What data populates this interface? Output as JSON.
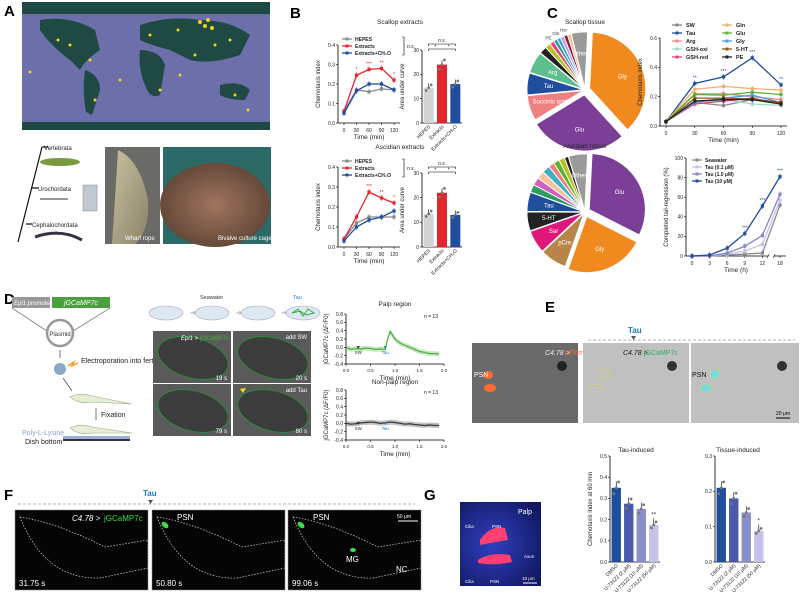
{
  "panels": {
    "A": "A",
    "B": "B",
    "C": "C",
    "D": "D",
    "E": "E",
    "F": "F",
    "G": "G"
  },
  "colors": {
    "red": "#e3262b",
    "blue": "#1f4e9c",
    "grey": "#8a8a8a",
    "green": "#49b03c",
    "orange": "#f08a1e",
    "purple": "#7b3f98"
  },
  "panel_a": {
    "taxa": [
      "Vertebrata",
      "Urochordata",
      "Cephalochordata"
    ],
    "photo_labels": [
      "Wharf rope",
      "Bivalve culture cage"
    ]
  },
  "panel_d": {
    "promoter": "Epi1 promoter",
    "reporter": "jGCaMP7c",
    "plasmid": "Plasmid",
    "electroporation": "Electroporation into fertilized eggs",
    "fixation": "Fixation",
    "coating": "Poly-L-Lysine",
    "dish": "Dish bottom",
    "seawater": "Seawater",
    "tau": "Tau",
    "construct_prefix": "Epi1 >",
    "construct_suffix": "jGCaMP7c",
    "frames": [
      {
        "time": "19 s",
        "note": ""
      },
      {
        "time": "20 s",
        "note": "add SW"
      },
      {
        "time": "79 s",
        "note": ""
      },
      {
        "time": "80 s",
        "note": "add Tau"
      }
    ]
  },
  "panel_e": {
    "tau": "Tau",
    "img1_prefix": "C4.78 >",
    "img1_suffix": "tdTomato",
    "img2_prefix": "C4.78 >",
    "img2_suffix": "jGCaMP7c",
    "psn": "PSN",
    "scale": "20 μm"
  },
  "panel_f": {
    "tau": "Tau",
    "prefix": "C4.78 >",
    "suffix": "jGCaMP7c",
    "scale": "50 μm",
    "frames": [
      {
        "time": "31.75 s",
        "labels": []
      },
      {
        "time": "50.80 s",
        "labels": [
          "PSN"
        ]
      },
      {
        "time": "99.06 s",
        "labels": [
          "PSN",
          "MG",
          "NC"
        ]
      }
    ]
  },
  "panel_g": {
    "labels": [
      "Palp",
      "Cilia",
      "PSN",
      "Axon",
      "Cilia",
      "PSN"
    ],
    "scale": "10 μm"
  },
  "chart_data": [
    {
      "id": "b_scallop_line",
      "type": "line",
      "title": "Scallop extracts",
      "xlabel": "Time (min)",
      "ylabel": "Chemotaxis index",
      "x": [
        0,
        30,
        60,
        90,
        120
      ],
      "xticks": [
        "0",
        "30",
        "60",
        "90",
        "120"
      ],
      "ylim": [
        0,
        0.4
      ],
      "yticks": [
        "0.0",
        "0.1",
        "0.2",
        "0.3",
        "0.4"
      ],
      "legend": "top-left",
      "bracket": "n.s.",
      "series": [
        {
          "name": "HEPES",
          "color": "#8a8a8a",
          "values": [
            0.06,
            0.17,
            0.16,
            0.175,
            0.17
          ]
        },
        {
          "name": "Extracts",
          "color": "#e3262b",
          "values": [
            0.06,
            0.245,
            0.275,
            0.28,
            0.22
          ],
          "sig": [
            "",
            "*",
            "***",
            "**",
            "*"
          ]
        },
        {
          "name": "Extracts+CH₂O",
          "color": "#1f4e9c",
          "values": [
            0.05,
            0.165,
            0.2,
            0.2,
            0.17
          ]
        }
      ]
    },
    {
      "id": "b_scallop_bar",
      "type": "bar",
      "xlabel": "",
      "ylabel": "Area under curve",
      "ylim": [
        0,
        30
      ],
      "yticks": [
        "0",
        "10",
        "20",
        "30"
      ],
      "categories": [
        "HEPES",
        "Extracts",
        "Extracts+CH₂O"
      ],
      "values": [
        14.5,
        24,
        16
      ],
      "colors": [
        "#d3d3d3",
        "#e3262b",
        "#1f4e9c"
      ],
      "brackets": [
        "n.s.",
        "*",
        "*"
      ]
    },
    {
      "id": "b_ascidian_line",
      "type": "line",
      "title": "Ascidian extracts",
      "xlabel": "Time (min)",
      "ylabel": "Chemotaxis index",
      "x": [
        0,
        30,
        60,
        90,
        120
      ],
      "xticks": [
        "0",
        "30",
        "60",
        "90",
        "120"
      ],
      "ylim": [
        0,
        0.4
      ],
      "yticks": [
        "0.0",
        "0.1",
        "0.2",
        "0.3",
        "0.4"
      ],
      "legend": "top-left",
      "bracket": "n.s.",
      "series": [
        {
          "name": "HEPES",
          "color": "#8a8a8a",
          "values": [
            0.04,
            0.12,
            0.15,
            0.15,
            0.15
          ]
        },
        {
          "name": "Extracts",
          "color": "#e3262b",
          "values": [
            0.04,
            0.15,
            0.275,
            0.245,
            0.22
          ],
          "sig": [
            "",
            "",
            "***",
            "**",
            "*"
          ]
        },
        {
          "name": "Extracts+CH₂O",
          "color": "#1f4e9c",
          "values": [
            0.03,
            0.1,
            0.135,
            0.15,
            0.18
          ]
        }
      ]
    },
    {
      "id": "b_ascidian_bar",
      "type": "bar",
      "xlabel": "",
      "ylabel": "Area under curve",
      "ylim": [
        0,
        30
      ],
      "yticks": [
        "0",
        "10",
        "20",
        "30"
      ],
      "categories": [
        "HEPES",
        "Extracts",
        "Extracts+CH₂O"
      ],
      "values": [
        13.5,
        22,
        13
      ],
      "colors": [
        "#d3d3d3",
        "#e3262b",
        "#1f4e9c"
      ],
      "brackets": [
        "n.s.",
        "*",
        "*"
      ]
    },
    {
      "id": "c_scallop_pie",
      "type": "pie",
      "title": "Scallop tissue",
      "slices": [
        {
          "label": "Gly",
          "value": 36,
          "color": "#f08a1e"
        },
        {
          "label": "Glu",
          "value": 27,
          "color": "#7b3f98"
        },
        {
          "label": "Succinic acid",
          "value": 7,
          "color": "#f08080"
        },
        {
          "label": "Tau",
          "value": 6,
          "color": "#1f4e9c"
        },
        {
          "label": "Arg",
          "value": 6,
          "color": "#5cc08e"
        },
        {
          "label": "",
          "value": 2,
          "color": "#222222"
        },
        {
          "label": "",
          "value": 1.5,
          "color": "#b5c21e"
        },
        {
          "label": "PE",
          "value": 1.2,
          "color": "#e0447a"
        },
        {
          "label": "",
          "value": 1,
          "color": "#2a9d8f"
        },
        {
          "label": "Gln",
          "value": 1,
          "color": "#4a9fe0"
        },
        {
          "label": "",
          "value": 1,
          "color": "#c4a0e0"
        },
        {
          "label": "Hsr",
          "value": 1,
          "color": "#8b1a3c"
        },
        {
          "label": "",
          "value": 1,
          "color": "#f5c09a"
        },
        {
          "label": "Others",
          "value": 4.5,
          "color": "#9a9a9a"
        }
      ]
    },
    {
      "id": "c_ascidian_pie",
      "type": "pie",
      "title": "Ascidian tissue",
      "slices": [
        {
          "label": "Glu",
          "value": 29,
          "color": "#7b3f98"
        },
        {
          "label": "Gly",
          "value": 21,
          "color": "#f08a1e"
        },
        {
          "label": "pCre",
          "value": 7,
          "color": "#b8864b"
        },
        {
          "label": "Sar",
          "value": 6,
          "color": "#e0187a"
        },
        {
          "label": "5-HT",
          "value": 5,
          "color": "#222222"
        },
        {
          "label": "Tau",
          "value": 5,
          "color": "#1f4e9c"
        },
        {
          "label": "",
          "value": 2,
          "color": "#2a9d60"
        },
        {
          "label": "",
          "value": 2,
          "color": "#d060c0"
        },
        {
          "label": "",
          "value": 2,
          "color": "#f5c09a"
        },
        {
          "label": "",
          "value": 2,
          "color": "#3cb0c0"
        },
        {
          "label": "",
          "value": 1.5,
          "color": "#f08080"
        },
        {
          "label": "",
          "value": 1.5,
          "color": "#5cb32e"
        },
        {
          "label": "",
          "value": 1.5,
          "color": "#b5c21e"
        },
        {
          "label": "",
          "value": 1,
          "color": "#222222"
        },
        {
          "label": "Others",
          "value": 5,
          "color": "#9a9a9a"
        }
      ]
    },
    {
      "id": "c_line",
      "type": "line",
      "xlabel": "Time (min)",
      "ylabel": "Chemotaxis index",
      "x": [
        0,
        30,
        60,
        90,
        120
      ],
      "xticks": [
        "0",
        "30",
        "60",
        "90",
        "120"
      ],
      "ylim": [
        0,
        0.6
      ],
      "yticks": [
        "0.0",
        "0.2",
        "0.4",
        "0.6"
      ],
      "legend": "top",
      "series": [
        {
          "name": "SW",
          "color": "#8a8a8a",
          "values": [
            0.03,
            0.16,
            0.14,
            0.18,
            0.15
          ]
        },
        {
          "name": "Tau",
          "color": "#1f4e9c",
          "values": [
            0.03,
            0.29,
            0.335,
            0.465,
            0.28
          ],
          "sig": [
            "",
            "**",
            "***",
            "***",
            "**"
          ]
        },
        {
          "name": "Arg",
          "color": "#f08a8a",
          "values": [
            0.03,
            0.22,
            0.22,
            0.2,
            0.18
          ]
        },
        {
          "name": "GSH-oxi",
          "color": "#9fdcc8",
          "values": [
            0.03,
            0.16,
            0.18,
            0.15,
            0.14
          ]
        },
        {
          "name": "GSH-red",
          "color": "#e0447a",
          "values": [
            0.03,
            0.15,
            0.17,
            0.19,
            0.15
          ]
        },
        {
          "name": "Gln",
          "color": "#f5b070",
          "values": [
            0.03,
            0.25,
            0.27,
            0.255,
            0.245
          ]
        },
        {
          "name": "Glu",
          "color": "#5cb32e",
          "values": [
            0.03,
            0.215,
            0.21,
            0.23,
            0.215
          ]
        },
        {
          "name": "Gly",
          "color": "#4a9fe0",
          "values": [
            0.03,
            0.16,
            0.19,
            0.21,
            0.16
          ]
        },
        {
          "name": "5-HT",
          "color": "#8b5a1c",
          "values": [
            0.03,
            0.19,
            0.19,
            0.185,
            0.16
          ]
        },
        {
          "name": "PE",
          "color": "#222222",
          "values": [
            0.03,
            0.17,
            0.18,
            0.18,
            0.15
          ]
        }
      ]
    },
    {
      "id": "c_tail",
      "type": "line",
      "xlabel": "Time (h)",
      "ylabel": "Completed tail-regression (%)",
      "x": [
        0,
        3,
        6,
        9,
        12,
        18
      ],
      "xticks": [
        "0",
        "3",
        "6",
        "9",
        "12",
        "18"
      ],
      "ylim": [
        0,
        100
      ],
      "yticks": [
        "0",
        "20",
        "40",
        "60",
        "80",
        "100"
      ],
      "legend": "top-left",
      "axis_break": [
        12,
        18
      ],
      "series": [
        {
          "name": "Seawater",
          "color": "#8a8a8a",
          "values": [
            0,
            0,
            1,
            2,
            3,
            52
          ]
        },
        {
          "name": "Tau (0.1 μM)",
          "color": "#c3c3ea",
          "values": [
            0,
            0,
            2,
            5,
            12,
            57
          ]
        },
        {
          "name": "Tau (1.0 μM)",
          "color": "#8585c8",
          "values": [
            0,
            0,
            3,
            10,
            21,
            63
          ]
        },
        {
          "name": "Tau (10 μM)",
          "color": "#1f4e9c",
          "values": [
            0,
            1,
            8,
            23,
            51,
            81
          ],
          "sig": [
            "",
            "",
            "",
            "***",
            "***",
            "***"
          ]
        }
      ]
    },
    {
      "id": "d_palp",
      "type": "line",
      "title": "Palp region",
      "note": "n = 13",
      "xlabel": "Time (min)",
      "ylabel": "jGCaMP7c (ΔF/F0)",
      "x": [
        0,
        0.1,
        0.2,
        0.3,
        0.4,
        0.5,
        0.6,
        0.7,
        0.8,
        0.85,
        0.9,
        1.0,
        1.1,
        1.2,
        1.3,
        1.4,
        1.5,
        1.6,
        1.7,
        1.8,
        1.9
      ],
      "xticks": [
        "0.0",
        "0.5",
        "1.0",
        "1.5",
        "2.0"
      ],
      "xlim": [
        0,
        2
      ],
      "ylim": [
        -0.4,
        0.8
      ],
      "yticks": [
        "-0.4",
        "-0.2",
        "0.0",
        "0.2",
        "0.4",
        "0.6",
        "0.8"
      ],
      "markers": [
        "SW",
        "Tau"
      ],
      "marker_x": [
        0.25,
        0.8
      ],
      "series": [
        {
          "name": "Palp",
          "color": "#49b03c",
          "values": [
            0,
            -0.05,
            -0.03,
            -0.04,
            -0.02,
            -0.03,
            -0.05,
            -0.04,
            -0.05,
            0.2,
            0.38,
            0.2,
            0.1,
            0.05,
            0.0,
            -0.05,
            -0.1,
            -0.12,
            -0.15,
            -0.15,
            -0.16
          ]
        }
      ]
    },
    {
      "id": "d_nonpalp",
      "type": "line",
      "title": "Non-palp region",
      "note": "n = 13",
      "xlabel": "Time (min)",
      "ylabel": "jGCaMP7c (ΔF/F0)",
      "x": [
        0,
        0.1,
        0.2,
        0.3,
        0.4,
        0.5,
        0.6,
        0.7,
        0.8,
        0.9,
        1.0,
        1.1,
        1.2,
        1.3,
        1.4,
        1.5,
        1.6,
        1.7,
        1.8,
        1.9
      ],
      "xticks": [
        "0.0",
        "0.5",
        "1.0",
        "1.5",
        "2.0"
      ],
      "xlim": [
        0,
        2
      ],
      "ylim": [
        -0.4,
        0.8
      ],
      "yticks": [
        "-0.4",
        "-0.2",
        "0.0",
        "0.2",
        "0.4",
        "0.6",
        "0.8"
      ],
      "markers": [
        "SW",
        "Tau"
      ],
      "marker_x": [
        0.25,
        0.8
      ],
      "series": [
        {
          "name": "Non-palp",
          "color": "#333333",
          "values": [
            0,
            -0.02,
            -0.01,
            0.01,
            0.02,
            0.03,
            0.02,
            0.0,
            0.01,
            0.03,
            0.02,
            0.0,
            -0.02,
            -0.01,
            -0.03,
            -0.04,
            -0.05,
            -0.04,
            -0.05,
            -0.05
          ]
        }
      ]
    },
    {
      "id": "g_tau",
      "type": "bar",
      "title": "Tau-induced",
      "ylabel": "Chemotaxis index at 60 min",
      "ylim": [
        0,
        0.5
      ],
      "yticks": [
        "0.0",
        "0.1",
        "0.2",
        "0.3",
        "0.4",
        "0.5"
      ],
      "categories": [
        "DMSO",
        "U-73122 (2 μM)",
        "U-73122 (10 μM)",
        "U-73122 (50 μM)"
      ],
      "values": [
        0.35,
        0.275,
        0.25,
        0.175
      ],
      "colors": [
        "#1f4e9c",
        "#4a5aab",
        "#8a8fc8",
        "#c3c3ea"
      ],
      "sig": [
        "",
        "",
        "",
        "**"
      ]
    },
    {
      "id": "g_tissue",
      "type": "bar",
      "title": "Tissue-induced",
      "ylabel": "",
      "ylim": [
        0,
        0.3
      ],
      "yticks": [
        "0.0",
        "0.1",
        "0.2",
        "0.3"
      ],
      "categories": [
        "DMSO",
        "U-73122 (2 μM)",
        "U-73122 (10 μM)",
        "U-73122 (50 μM)"
      ],
      "values": [
        0.21,
        0.18,
        0.14,
        0.088
      ],
      "colors": [
        "#1f4e9c",
        "#4a5aab",
        "#8a8fc8",
        "#c3c3ea"
      ],
      "sig": [
        "",
        "",
        "",
        "*"
      ]
    }
  ]
}
